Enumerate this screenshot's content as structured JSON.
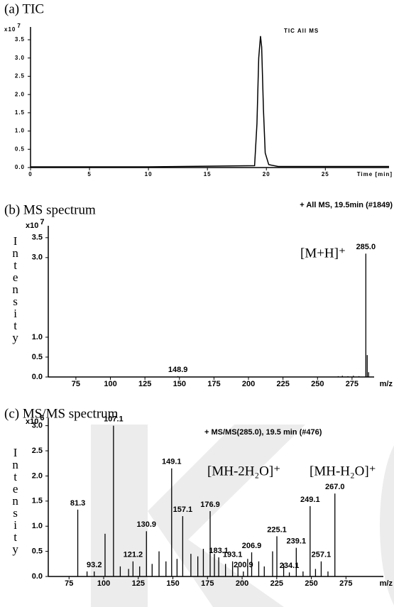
{
  "chart_data": [
    {
      "type": "line",
      "title": "(a) TIC",
      "y_multiplier": "x10",
      "y_exponent": "7",
      "xlabel": "Time [min]",
      "annotations": [
        "TIC All MS"
      ],
      "x": [
        0,
        10,
        19.0,
        19.2,
        19.35,
        19.5,
        19.6,
        19.75,
        19.9,
        20.2,
        21,
        25,
        30.4
      ],
      "values": [
        0.02,
        0.02,
        0.05,
        1.2,
        3.0,
        3.6,
        3.3,
        1.6,
        0.4,
        0.08,
        0.03,
        0.03,
        0.03
      ],
      "color": "#000000",
      "xlim": [
        0,
        30.4
      ],
      "ylim": [
        0,
        3.85
      ],
      "xticks": [
        0,
        5,
        10,
        15,
        20,
        25
      ],
      "yticks": [
        {
          "value": 0,
          "label": "0.0"
        },
        0.5,
        {
          "value": 1,
          "label": "1.0"
        },
        1.5,
        {
          "value": 2,
          "label": "2.0"
        },
        2.5,
        {
          "value": 3,
          "label": "3.0"
        },
        3.5
      ]
    },
    {
      "type": "bar",
      "title": "(b) MS spectrum",
      "y_multiplier": "x10",
      "y_exponent": "7",
      "xlabel": "m/z",
      "ylabel": "Intensity",
      "annotations": [
        "+ All MS, 19.5min (#1849)",
        "[M+H]⁺"
      ],
      "x": [
        148.9,
        265,
        268,
        272,
        276,
        280,
        285.0,
        286,
        287
      ],
      "values": [
        0.02,
        0.02,
        0.03,
        0.02,
        0.03,
        0.02,
        3.1,
        0.55,
        0.12
      ],
      "x_labels": [
        "148.9",
        null,
        null,
        null,
        null,
        null,
        "285.0",
        null,
        null
      ],
      "color": "#000000",
      "xlim": [
        55,
        291
      ],
      "ylim": [
        0,
        3.8
      ],
      "xticks": [
        75,
        100,
        125,
        150,
        175,
        200,
        225,
        250,
        275
      ],
      "yticks": [
        {
          "value": 0,
          "label": "0.0"
        },
        0.5,
        {
          "value": 1,
          "label": "1.0"
        },
        {
          "value": 3,
          "label": "3.0"
        },
        3.5
      ]
    },
    {
      "type": "bar",
      "title": "(c) MS/MS spectrum",
      "y_multiplier": "x10",
      "y_exponent": "6",
      "xlabel": "m/z",
      "ylabel": "Intensity",
      "annotations": [
        "+ MS/MS(285.0), 19.5 min (#476)",
        "[MH-2H₂O]⁺",
        "[MH-H₂O]⁺"
      ],
      "x": [
        81.3,
        88,
        93.2,
        101,
        107.1,
        112,
        118,
        121.2,
        126,
        130.9,
        135,
        140,
        145,
        149.1,
        153,
        157.1,
        163,
        168,
        172,
        176.9,
        180,
        183.1,
        188,
        193.1,
        197,
        200.9,
        204,
        206.9,
        212,
        216,
        222,
        225.1,
        230,
        234.1,
        239.1,
        244,
        249.1,
        253,
        257.1,
        262,
        267.0
      ],
      "values": [
        1.33,
        0.1,
        0.1,
        0.85,
        3.0,
        0.2,
        0.15,
        0.3,
        0.2,
        0.9,
        0.25,
        0.5,
        0.3,
        2.15,
        0.35,
        1.2,
        0.45,
        0.4,
        0.55,
        1.3,
        0.45,
        0.38,
        0.25,
        0.3,
        0.2,
        0.1,
        0.35,
        0.48,
        0.3,
        0.2,
        0.5,
        0.8,
        0.25,
        0.08,
        0.57,
        0.1,
        1.4,
        0.15,
        0.3,
        0.1,
        1.65
      ],
      "x_labels": [
        "81.3",
        null,
        "93.2",
        null,
        "107.1",
        null,
        null,
        "121.2",
        null,
        "130.9",
        null,
        null,
        null,
        "149.1",
        null,
        "157.1",
        null,
        null,
        null,
        "176.9",
        null,
        "183.1",
        null,
        "193.1",
        null,
        "200.9",
        null,
        "206.9",
        null,
        null,
        null,
        "225.1",
        null,
        "234.1",
        "239.1",
        null,
        "249.1",
        null,
        "257.1",
        null,
        "267.0"
      ],
      "color": "#000000",
      "xlim": [
        60,
        302
      ],
      "ylim": [
        0,
        3.15
      ],
      "xticks": [
        75,
        100,
        125,
        150,
        175,
        200,
        225,
        250,
        275
      ],
      "yticks": [
        {
          "value": 0,
          "label": "0.0"
        },
        0.5,
        {
          "value": 1,
          "label": "1.0"
        },
        1.5,
        {
          "value": 2,
          "label": "2.0"
        },
        2.5,
        {
          "value": 3,
          "label": "3.0"
        }
      ]
    }
  ]
}
